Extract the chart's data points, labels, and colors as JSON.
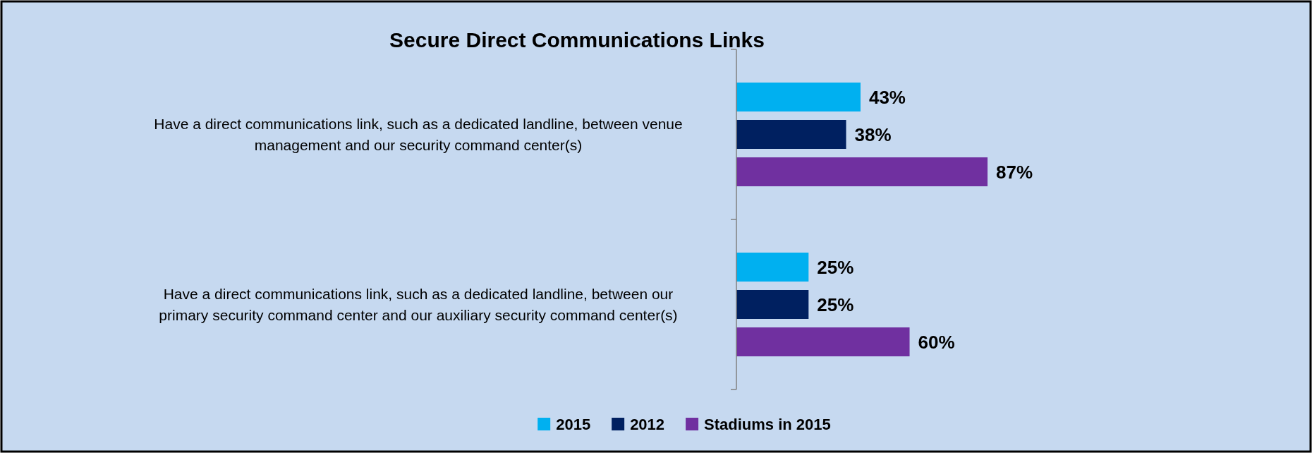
{
  "chart_data": {
    "type": "bar",
    "orientation": "horizontal",
    "title": "Secure Direct Communications Links",
    "categories": [
      "Have a direct communications link, such as a dedicated landline, between venue management and our security command center(s)",
      "Have a direct communications link, such as a dedicated landline, between our primary security command center and our auxiliary security command center(s)"
    ],
    "series": [
      {
        "name": "2015",
        "color": "#00b0f0",
        "values": [
          43,
          25
        ],
        "value_labels": [
          "43%",
          "25%"
        ]
      },
      {
        "name": "2012",
        "color": "#002060",
        "values": [
          38,
          25
        ],
        "value_labels": [
          "38%",
          "25%"
        ]
      },
      {
        "name": "Stadiums in 2015",
        "color": "#7030a0",
        "values": [
          87,
          60
        ],
        "value_labels": [
          "87%",
          "60%"
        ]
      }
    ],
    "legend": "bottom"
  }
}
